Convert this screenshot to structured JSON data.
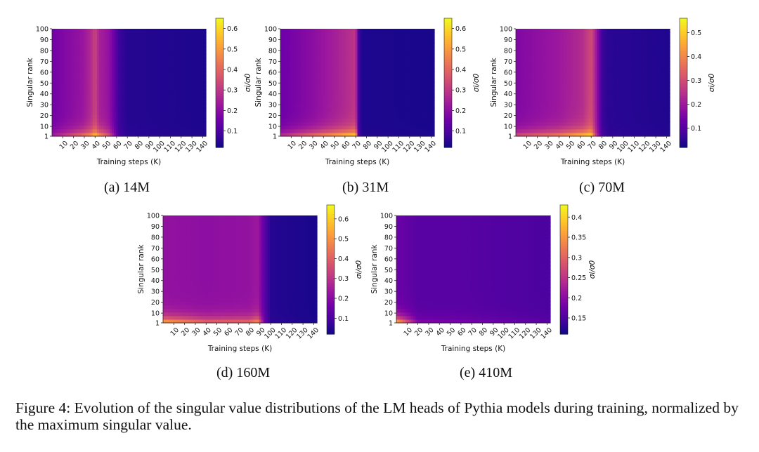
{
  "figure": {
    "caption": "Figure 4: Evolution of the singular value distributions of the LM heads of Pythia models during training, normalized by the maximum singular value."
  },
  "colormap": {
    "name": "plasma",
    "stops": [
      "#0d0887",
      "#46039f",
      "#7201a8",
      "#9c179e",
      "#bd3786",
      "#d8576b",
      "#ed7953",
      "#fb9f3a",
      "#fdca26",
      "#f0f921"
    ]
  },
  "chart_data": [
    {
      "type": "heatmap",
      "id": "a",
      "subcaption": "(a) 14M",
      "xlabel": "Training steps (K)",
      "ylabel": "Singular rank",
      "colorbar_label": "σi/σ0",
      "xlim": [
        0,
        143
      ],
      "ylim": [
        1,
        100
      ],
      "xticks": [
        10,
        20,
        30,
        40,
        50,
        60,
        70,
        80,
        90,
        100,
        110,
        120,
        130,
        140
      ],
      "yticks": [
        1,
        10,
        20,
        30,
        40,
        50,
        60,
        70,
        80,
        90,
        100
      ],
      "color_range": [
        0.02,
        0.65
      ],
      "colorbar_ticks": [
        0.1,
        0.2,
        0.3,
        0.4,
        0.5,
        0.6
      ],
      "profile": [
        [
          0,
          0.16,
          0.25
        ],
        [
          28,
          0.22,
          0.45
        ],
        [
          36,
          0.27,
          0.52
        ],
        [
          40,
          0.33,
          0.62
        ],
        [
          44,
          0.25,
          0.52
        ],
        [
          52,
          0.22,
          0.4
        ],
        [
          57,
          0.16,
          0.25
        ],
        [
          62,
          0.08,
          0.1
        ],
        [
          70,
          0.05,
          0.06
        ],
        [
          143,
          0.04,
          0.045
        ]
      ]
    },
    {
      "type": "heatmap",
      "id": "b",
      "subcaption": "(b) 31M",
      "xlabel": "Training steps (K)",
      "ylabel": "Singular rank",
      "colorbar_label": "σi/σ0",
      "xlim": [
        0,
        143
      ],
      "ylim": [
        1,
        100
      ],
      "xticks": [
        10,
        20,
        30,
        40,
        50,
        60,
        70,
        80,
        90,
        100,
        110,
        120,
        130,
        140
      ],
      "yticks": [
        1,
        10,
        20,
        30,
        40,
        50,
        60,
        70,
        80,
        90,
        100
      ],
      "color_range": [
        0.02,
        0.65
      ],
      "colorbar_ticks": [
        0.1,
        0.2,
        0.3,
        0.4,
        0.5,
        0.6
      ],
      "profile": [
        [
          0,
          0.15,
          0.3
        ],
        [
          30,
          0.2,
          0.45
        ],
        [
          60,
          0.27,
          0.6
        ],
        [
          70,
          0.3,
          0.64
        ],
        [
          72,
          0.1,
          0.14
        ],
        [
          76,
          0.04,
          0.05
        ],
        [
          143,
          0.035,
          0.04
        ]
      ]
    },
    {
      "type": "heatmap",
      "id": "c",
      "subcaption": "(c) 70M",
      "xlabel": "Training steps (K)",
      "ylabel": "Singular rank",
      "colorbar_label": "σi/σ0",
      "xlim": [
        0,
        143
      ],
      "ylim": [
        1,
        100
      ],
      "xticks": [
        10,
        20,
        30,
        40,
        50,
        60,
        70,
        80,
        90,
        100,
        110,
        120,
        130,
        140
      ],
      "yticks": [
        1,
        10,
        20,
        30,
        40,
        50,
        60,
        70,
        80,
        90,
        100
      ],
      "color_range": [
        0.02,
        0.56
      ],
      "colorbar_ticks": [
        0.1,
        0.2,
        0.3,
        0.4,
        0.5
      ],
      "profile": [
        [
          0,
          0.16,
          0.32
        ],
        [
          40,
          0.2,
          0.42
        ],
        [
          62,
          0.24,
          0.52
        ],
        [
          70,
          0.3,
          0.56
        ],
        [
          74,
          0.22,
          0.3
        ],
        [
          80,
          0.07,
          0.09
        ],
        [
          86,
          0.05,
          0.06
        ],
        [
          143,
          0.04,
          0.045
        ]
      ]
    },
    {
      "type": "heatmap",
      "id": "d",
      "subcaption": "(d) 160M",
      "xlabel": "Training steps (K)",
      "ylabel": "Singular rank",
      "colorbar_label": "σi/σ0",
      "xlim": [
        0,
        143
      ],
      "ylim": [
        1,
        100
      ],
      "xticks": [
        10,
        20,
        30,
        40,
        50,
        60,
        70,
        80,
        90,
        100,
        110,
        120,
        130,
        140
      ],
      "yticks": [
        1,
        10,
        20,
        30,
        40,
        50,
        60,
        70,
        80,
        90,
        100
      ],
      "color_range": [
        0.02,
        0.67
      ],
      "colorbar_ticks": [
        0.1,
        0.2,
        0.3,
        0.4,
        0.5,
        0.6
      ],
      "profile": [
        [
          0,
          0.22,
          0.6
        ],
        [
          40,
          0.21,
          0.45
        ],
        [
          80,
          0.22,
          0.46
        ],
        [
          88,
          0.24,
          0.55
        ],
        [
          94,
          0.13,
          0.18
        ],
        [
          100,
          0.05,
          0.06
        ],
        [
          143,
          0.035,
          0.04
        ]
      ]
    },
    {
      "type": "heatmap",
      "id": "e",
      "subcaption": "(e) 410M",
      "xlabel": "Training steps (K)",
      "ylabel": "Singular rank",
      "colorbar_label": "σi/σ0",
      "xlim": [
        0,
        143
      ],
      "ylim": [
        1,
        100
      ],
      "xticks": [
        10,
        20,
        30,
        40,
        50,
        60,
        70,
        80,
        90,
        100,
        110,
        120,
        130,
        140
      ],
      "yticks": [
        1,
        10,
        20,
        30,
        40,
        50,
        60,
        70,
        80,
        90,
        100
      ],
      "color_range": [
        0.11,
        0.43
      ],
      "colorbar_ticks": [
        0.15,
        0.2,
        0.25,
        0.3,
        0.35,
        0.4
      ],
      "profile": [
        [
          0,
          0.175,
          0.42
        ],
        [
          20,
          0.16,
          0.2
        ],
        [
          60,
          0.16,
          0.19
        ],
        [
          100,
          0.155,
          0.18
        ],
        [
          143,
          0.15,
          0.165
        ]
      ]
    }
  ]
}
